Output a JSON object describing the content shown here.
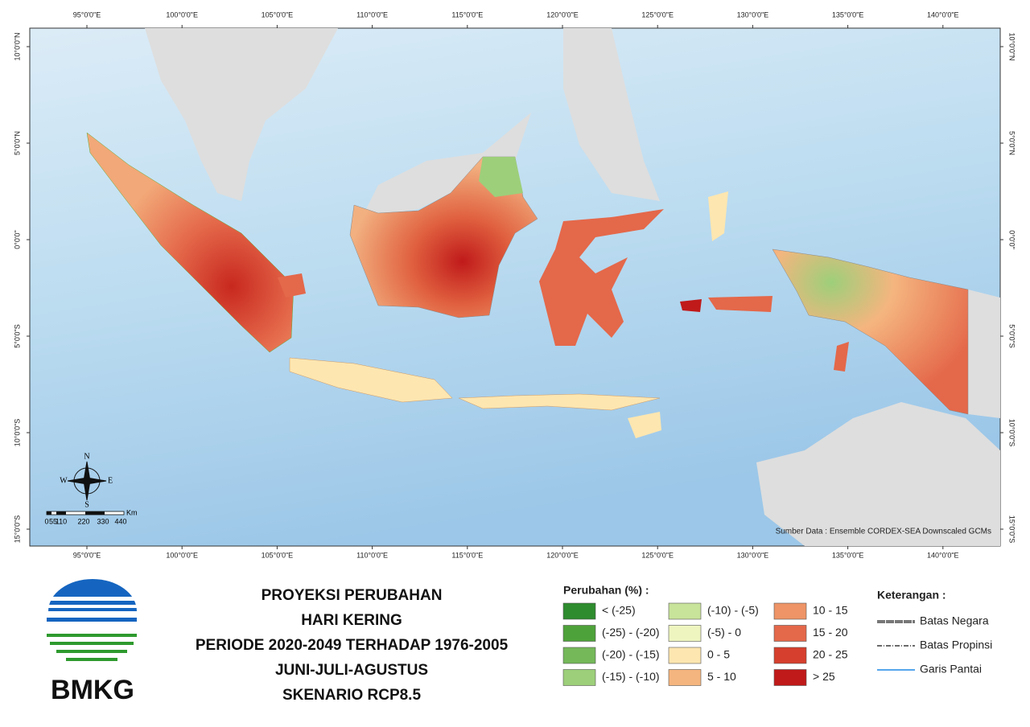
{
  "map": {
    "lon_labels": [
      "95°0'0\"E",
      "100°0'0\"E",
      "105°0'0\"E",
      "110°0'0\"E",
      "115°0'0\"E",
      "120°0'0\"E",
      "125°0'0\"E",
      "130°0'0\"E",
      "135°0'0\"E",
      "140°0'0\"E"
    ],
    "lat_labels": [
      "10°0'0\"N",
      "5°0'0\"N",
      "0°0'0\"",
      "5°0'0\"S",
      "10°0'0\"S",
      "15°0'0\"S"
    ],
    "compass": {
      "n": "N",
      "e": "E",
      "s": "S",
      "w": "W"
    },
    "scale_bar": {
      "labels": [
        "0",
        "55",
        "110",
        "220",
        "330",
        "440"
      ],
      "unit": "Km"
    },
    "source": "Sumber Data : Ensemble CORDEX-SEA Downscaled GCMs"
  },
  "logo": {
    "text": "BMKG"
  },
  "title": {
    "lines": [
      "PROYEKSI PERUBAHAN",
      "HARI KERING",
      "PERIODE 2020-2049 TERHADAP 1976-2005",
      "JUNI-JULI-AGUSTUS",
      "SKENARIO RCP8.5"
    ]
  },
  "legend": {
    "title": "Perubahan (%) :",
    "items": [
      {
        "label": "< (-25)",
        "color": "#2e8b2e"
      },
      {
        "label": "(-25) - (-20)",
        "color": "#4ea23a"
      },
      {
        "label": "(-20) - (-15)",
        "color": "#74b85a"
      },
      {
        "label": "(-15) - (-10)",
        "color": "#9dcf7a"
      },
      {
        "label": "(-10) - (-5)",
        "color": "#c8e39a"
      },
      {
        "label": "(-5) - 0",
        "color": "#eef5bf"
      },
      {
        "label": "0 - 5",
        "color": "#fde6b0"
      },
      {
        "label": "5 - 10",
        "color": "#f5b57f"
      },
      {
        "label": "10 - 15",
        "color": "#ee9466"
      },
      {
        "label": "15 - 20",
        "color": "#e4684a"
      },
      {
        "label": "20 - 25",
        "color": "#d63f2d"
      },
      {
        "label": "> 25",
        "color": "#c01a1a"
      }
    ]
  },
  "keterangan": {
    "title": "Keterangan :",
    "items": [
      {
        "label": "Batas Negara"
      },
      {
        "label": "Batas Propinsi"
      },
      {
        "label": "Garis Pantai"
      }
    ]
  }
}
